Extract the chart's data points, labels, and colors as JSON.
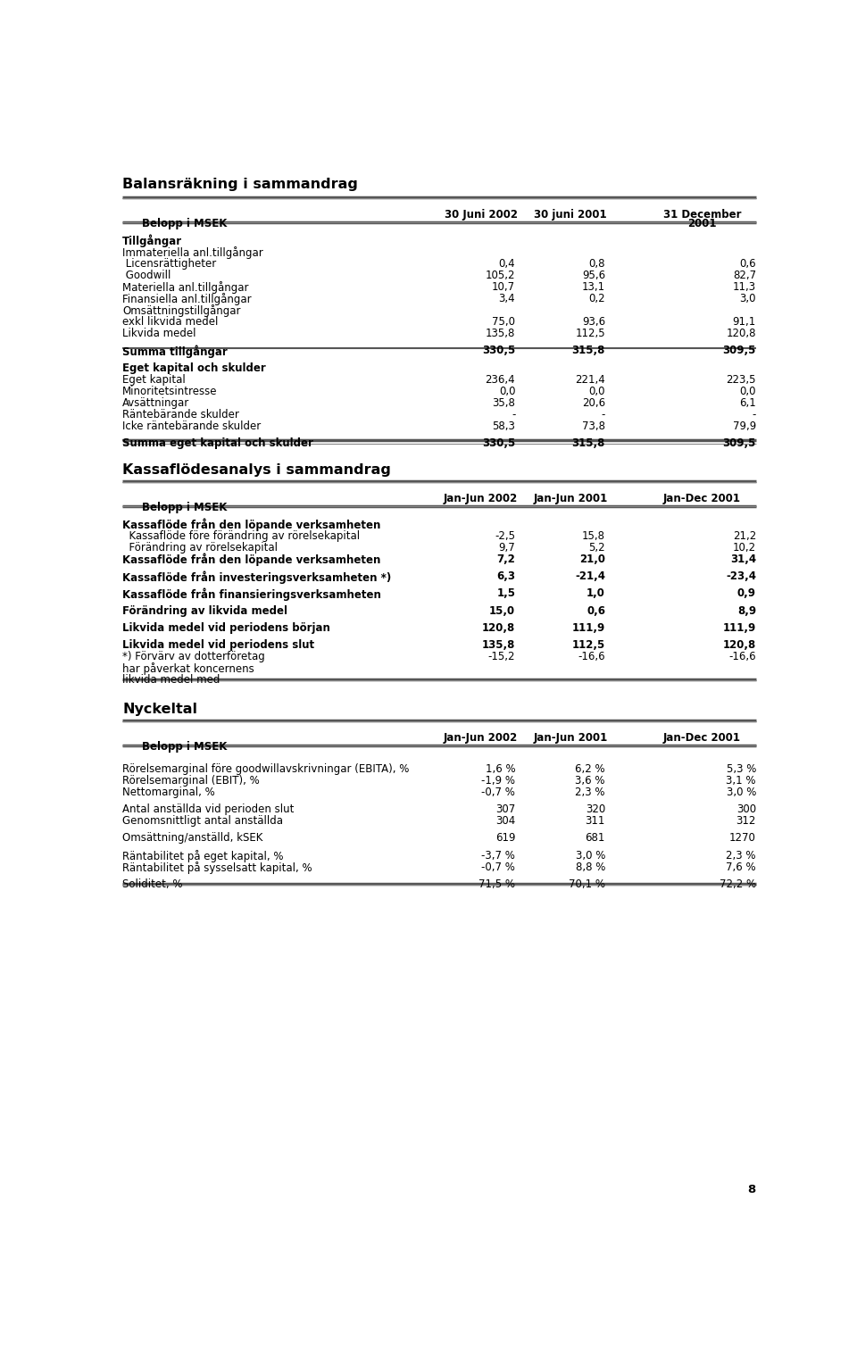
{
  "title1": "Balansräkning i sammandrag",
  "title2": "Kassaflödesanalys i sammandrag",
  "title3": "Nyckeltal",
  "section1_rows": [
    {
      "label": "Tillgångar",
      "bold": true,
      "vals": [
        "",
        "",
        ""
      ],
      "spacer_after": false
    },
    {
      "label": "Immateriella anl.tillgångar",
      "bold": false,
      "vals": [
        "",
        "",
        ""
      ],
      "spacer_after": false
    },
    {
      "label": " Licensrättigheter",
      "bold": false,
      "vals": [
        "0,4",
        "0,8",
        "0,6"
      ],
      "spacer_after": false
    },
    {
      "label": " Goodwill",
      "bold": false,
      "vals": [
        "105,2",
        "95,6",
        "82,7"
      ],
      "spacer_after": false
    },
    {
      "label": "Materiella anl.tillgångar",
      "bold": false,
      "vals": [
        "10,7",
        "13,1",
        "11,3"
      ],
      "spacer_after": false
    },
    {
      "label": "Finansiella anl.tillgångar",
      "bold": false,
      "vals": [
        "3,4",
        "0,2",
        "3,0"
      ],
      "spacer_after": false
    },
    {
      "label": "Omsättningstillgångar",
      "bold": false,
      "vals": [
        "",
        "",
        ""
      ],
      "spacer_after": false
    },
    {
      "label": "exkl likvida medel",
      "bold": false,
      "vals": [
        "75,0",
        "93,6",
        "91,1"
      ],
      "spacer_after": false
    },
    {
      "label": "Likvida medel",
      "bold": false,
      "vals": [
        "135,8",
        "112,5",
        "120,8"
      ],
      "spacer_after": true
    },
    {
      "label": "Summa tillgångar",
      "bold": true,
      "vals": [
        "330,5",
        "315,8",
        "309,5"
      ],
      "spacer_after": true,
      "summary": true
    },
    {
      "label": "Eget kapital och skulder",
      "bold": true,
      "vals": [
        "",
        "",
        ""
      ],
      "spacer_after": false
    },
    {
      "label": "Eget kapital",
      "bold": false,
      "vals": [
        "236,4",
        "221,4",
        "223,5"
      ],
      "spacer_after": false
    },
    {
      "label": "Minoritetsintresse",
      "bold": false,
      "vals": [
        "0,0",
        "0,0",
        "0,0"
      ],
      "spacer_after": false
    },
    {
      "label": "Avsättningar",
      "bold": false,
      "vals": [
        "35,8",
        "20,6",
        "6,1"
      ],
      "spacer_after": false
    },
    {
      "label": "Räntebärande skulder",
      "bold": false,
      "vals": [
        "-",
        "-",
        "-"
      ],
      "spacer_after": false
    },
    {
      "label": "Icke räntebärande skulder",
      "bold": false,
      "vals": [
        "58,3",
        "73,8",
        "79,9"
      ],
      "spacer_after": true
    },
    {
      "label": "Summa eget kapital och skulder",
      "bold": true,
      "vals": [
        "330,5",
        "315,8",
        "309,5"
      ],
      "spacer_after": false,
      "summary": true
    }
  ],
  "section2_rows": [
    {
      "label": "Kassaflöde från den löpande verksamheten",
      "bold": true,
      "vals": [
        "",
        "",
        ""
      ],
      "spacer_after": false
    },
    {
      "label": "  Kassaflöde före förändring av rörelsekapital",
      "bold": false,
      "vals": [
        "-2,5",
        "15,8",
        "21,2"
      ],
      "spacer_after": false
    },
    {
      "label": "  Förändring av rörelsekapital",
      "bold": false,
      "vals": [
        "9,7",
        "5,2",
        "10,2"
      ],
      "spacer_after": false
    },
    {
      "label": "Kassaflöde från den löpande verksamheten",
      "bold": true,
      "vals": [
        "7,2",
        "21,0",
        "31,4"
      ],
      "spacer_after": true
    },
    {
      "label": "Kassaflöde från investeringsverksamheten *)",
      "bold": true,
      "vals": [
        "6,3",
        "-21,4",
        "-23,4"
      ],
      "spacer_after": true
    },
    {
      "label": "Kassaflöde från finansieringsverksamheten",
      "bold": true,
      "vals": [
        "1,5",
        "1,0",
        "0,9"
      ],
      "spacer_after": true
    },
    {
      "label": "Förändring av likvida medel",
      "bold": true,
      "vals": [
        "15,0",
        "0,6",
        "8,9"
      ],
      "spacer_after": true
    },
    {
      "label": "Likvida medel vid periodens början",
      "bold": true,
      "vals": [
        "120,8",
        "111,9",
        "111,9"
      ],
      "spacer_after": true
    },
    {
      "label": "Likvida medel vid periodens slut",
      "bold": true,
      "vals": [
        "135,8",
        "112,5",
        "120,8"
      ],
      "spacer_after": false
    },
    {
      "label": "*) Förvärv av dotterföretag",
      "bold": false,
      "vals": [
        "-15,2",
        "-16,6",
        "-16,6"
      ],
      "spacer_after": false
    },
    {
      "label": "har påverkat koncernens",
      "bold": false,
      "vals": [
        "",
        "",
        ""
      ],
      "spacer_after": false
    },
    {
      "label": "likvida medel med",
      "bold": false,
      "vals": [
        "",
        "",
        ""
      ],
      "spacer_after": false
    }
  ],
  "section3_rows": [
    {
      "label": "Rörelsemarginal före goodwillavskrivningar (EBITA), %",
      "bold": false,
      "vals": [
        "1,6 %",
        "6,2 %",
        "5,3 %"
      ],
      "spacer_after": false
    },
    {
      "label": "Rörelsemarginal (EBIT), %",
      "bold": false,
      "vals": [
        "-1,9 %",
        "3,6 %",
        "3,1 %"
      ],
      "spacer_after": false
    },
    {
      "label": "Nettomarginal, %",
      "bold": false,
      "vals": [
        "-0,7 %",
        "2,3 %",
        "3,0 %"
      ],
      "spacer_after": true
    },
    {
      "label": "Antal anställda vid perioden slut",
      "bold": false,
      "vals": [
        "307",
        "320",
        "300"
      ],
      "spacer_after": false
    },
    {
      "label": "Genomsnittligt antal anställda",
      "bold": false,
      "vals": [
        "304",
        "311",
        "312"
      ],
      "spacer_after": true
    },
    {
      "label": "Omsättning/anställd, kSEK",
      "bold": false,
      "vals": [
        "619",
        "681",
        "1270"
      ],
      "spacer_after": true
    },
    {
      "label": "Räntabilitet på eget kapital, %",
      "bold": false,
      "vals": [
        "-3,7 %",
        "3,0 %",
        "2,3 %"
      ],
      "spacer_after": false
    },
    {
      "label": "Räntabilitet på sysselsatt kapital, %",
      "bold": false,
      "vals": [
        "-0,7 %",
        "8,8 %",
        "7,6 %"
      ],
      "spacer_after": true
    },
    {
      "label": "Soliditet, %",
      "bold": false,
      "vals": [
        "71,5 %",
        "70,1 %",
        "72,2 %"
      ],
      "spacer_after": false
    }
  ],
  "bg_color": "#ffffff"
}
